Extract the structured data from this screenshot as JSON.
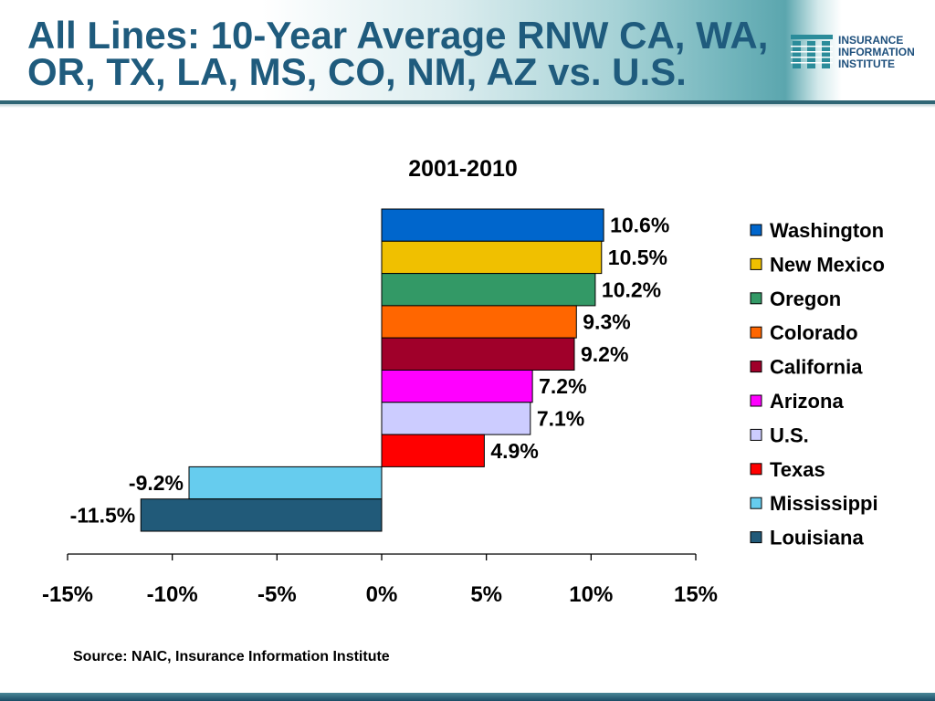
{
  "header": {
    "title_line1": "All Lines: 10-Year Average RNW CA, WA,",
    "title_line2": "OR, TX, LA, MS, CO, NM, AZ vs. U.S."
  },
  "logo": {
    "icon": "iii-logo-icon",
    "line1": "INSURANCE",
    "line2": "INFORMATION",
    "line3": "INSTITUTE"
  },
  "theme": {
    "title_color": "#1f5b7d",
    "logo_color": "#2b8c9a",
    "logo_text_color": "#1d4f7c",
    "rule_color": "#2f6675"
  },
  "chart_data": {
    "type": "bar",
    "orientation": "horizontal",
    "title": "2001-2010",
    "categories": [
      "Washington",
      "New Mexico",
      "Oregon",
      "Colorado",
      "California",
      "Arizona",
      "U.S.",
      "Texas",
      "Mississippi",
      "Louisiana"
    ],
    "values": [
      10.6,
      10.5,
      10.2,
      9.3,
      9.2,
      7.2,
      7.1,
      4.9,
      -9.2,
      -11.5
    ],
    "value_labels": [
      "10.6%",
      "10.5%",
      "10.2%",
      "9.3%",
      "9.2%",
      "7.2%",
      "7.1%",
      "4.9%",
      "-9.2%",
      "-11.5%"
    ],
    "colors": [
      "#0066cc",
      "#f0c000",
      "#339966",
      "#ff6600",
      "#a0002a",
      "#ff00ff",
      "#ccccff",
      "#ff0000",
      "#66ccee",
      "#215a79"
    ],
    "xlim": [
      -15,
      15
    ],
    "xticks": [
      -15,
      -10,
      -5,
      0,
      5,
      10,
      15
    ],
    "xtick_labels": [
      "-15%",
      "-10%",
      "-5%",
      "0%",
      "5%",
      "10%",
      "15%"
    ],
    "grid": false,
    "legend": "right"
  },
  "footer": {
    "source": "Source: NAIC, Insurance Information Institute"
  }
}
